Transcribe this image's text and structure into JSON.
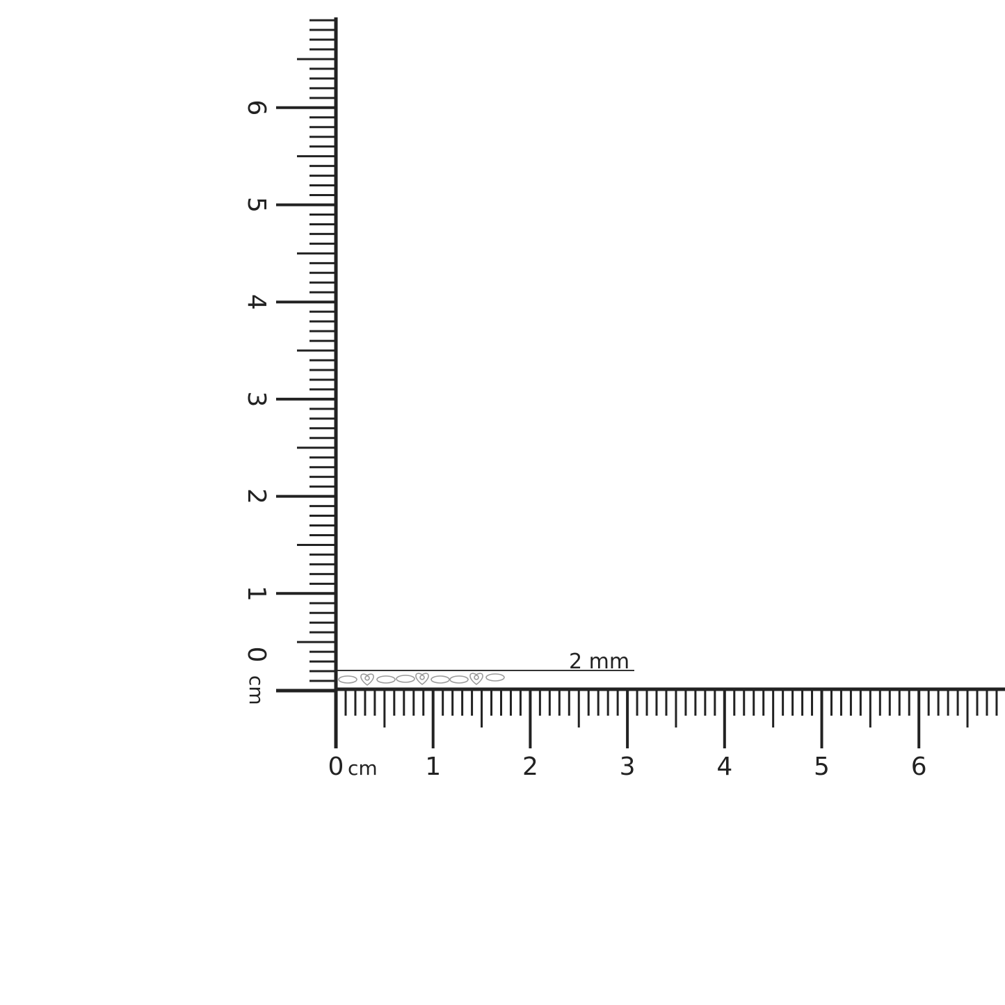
{
  "rulers": {
    "unit": "cm",
    "horizontal": {
      "labels": [
        "0",
        "1",
        "2",
        "3",
        "4",
        "5",
        "6"
      ],
      "unit_label": "cm",
      "range_cm": [
        0,
        6.9
      ]
    },
    "vertical": {
      "labels": [
        "0",
        "1",
        "2",
        "3",
        "4",
        "5",
        "6"
      ],
      "unit_label": "cm",
      "range_cm": [
        0,
        6.9
      ]
    }
  },
  "measurement": {
    "label": "2 mm",
    "value_mm": 2
  },
  "item": {
    "description_icon": "jewelry-chain-bracelet",
    "color": "#9a9a9a"
  },
  "colors": {
    "ruler": "#222222",
    "background": "#ffffff"
  }
}
